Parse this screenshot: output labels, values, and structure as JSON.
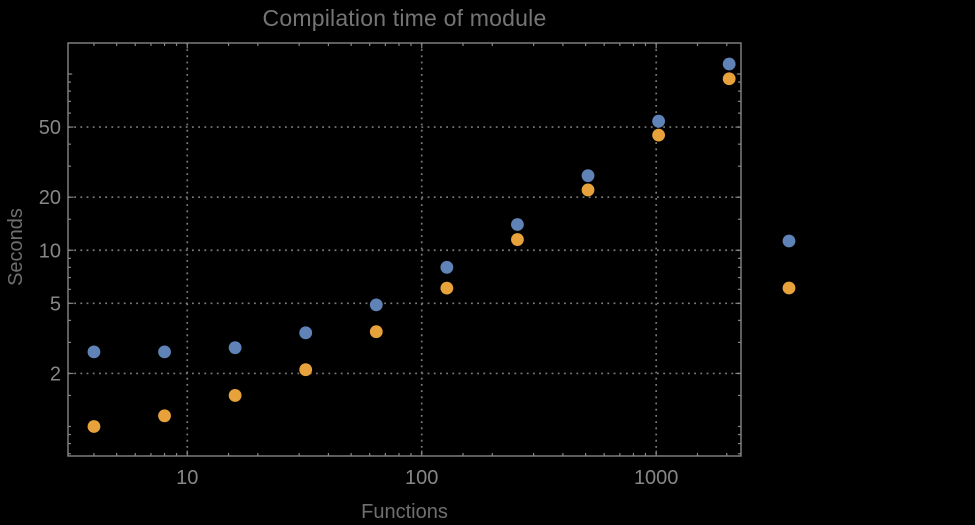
{
  "window": {
    "background_color": "#000000"
  },
  "chart_data": {
    "type": "scatter",
    "title": "Compilation time of module",
    "xlabel": "Functions",
    "ylabel": "Seconds",
    "x_scale": "log",
    "y_scale": "log",
    "xlim": [
      3.1,
      2300
    ],
    "ylim": [
      0.68,
      150
    ],
    "grid": true,
    "grid_style": "dotted",
    "x_major_ticks": [
      10,
      100,
      1000
    ],
    "x_tick_labels": [
      "10",
      "100",
      "1000"
    ],
    "x_minor_ticks": [
      4,
      5,
      6,
      7,
      8,
      9,
      15,
      20,
      30,
      40,
      50,
      60,
      70,
      80,
      90,
      150,
      200,
      300,
      400,
      500,
      600,
      700,
      800,
      900,
      1500,
      2000
    ],
    "y_major_ticks": [
      2,
      5,
      10,
      20,
      50
    ],
    "y_tick_labels": [
      "2",
      "5",
      "10",
      "20",
      "50"
    ],
    "y_medium_ticks": [
      100
    ],
    "y_minor_ticks": [
      0.7,
      0.8,
      0.9,
      1,
      1.5,
      3,
      4,
      6,
      7,
      8,
      9,
      15,
      30,
      40,
      60,
      70,
      80,
      90
    ],
    "x": [
      4,
      8,
      16,
      32,
      64,
      128,
      256,
      512,
      1024,
      2048
    ],
    "series": [
      {
        "name": "series-1-blue",
        "color": "#6083B7",
        "values": [
          2.65,
          2.65,
          2.8,
          3.4,
          4.9,
          8.0,
          14.0,
          26.5,
          54,
          114
        ]
      },
      {
        "name": "series-2-orange",
        "color": "#E8A23B",
        "values": [
          1.0,
          1.15,
          1.5,
          2.1,
          3.45,
          6.1,
          11.5,
          22,
          45,
          94
        ]
      }
    ],
    "legend": {
      "position": "right-outside",
      "labels_visible": false,
      "markers": [
        {
          "series": "series-1-blue",
          "color": "#6083B7"
        },
        {
          "series": "series-2-orange",
          "color": "#E8A23B"
        }
      ]
    }
  },
  "style_colors": {
    "frame": "#878787",
    "grid": "#7c7c7c",
    "tick_labels": "#878787",
    "title": "#757575",
    "axis_labels": "#6f6f6f"
  }
}
